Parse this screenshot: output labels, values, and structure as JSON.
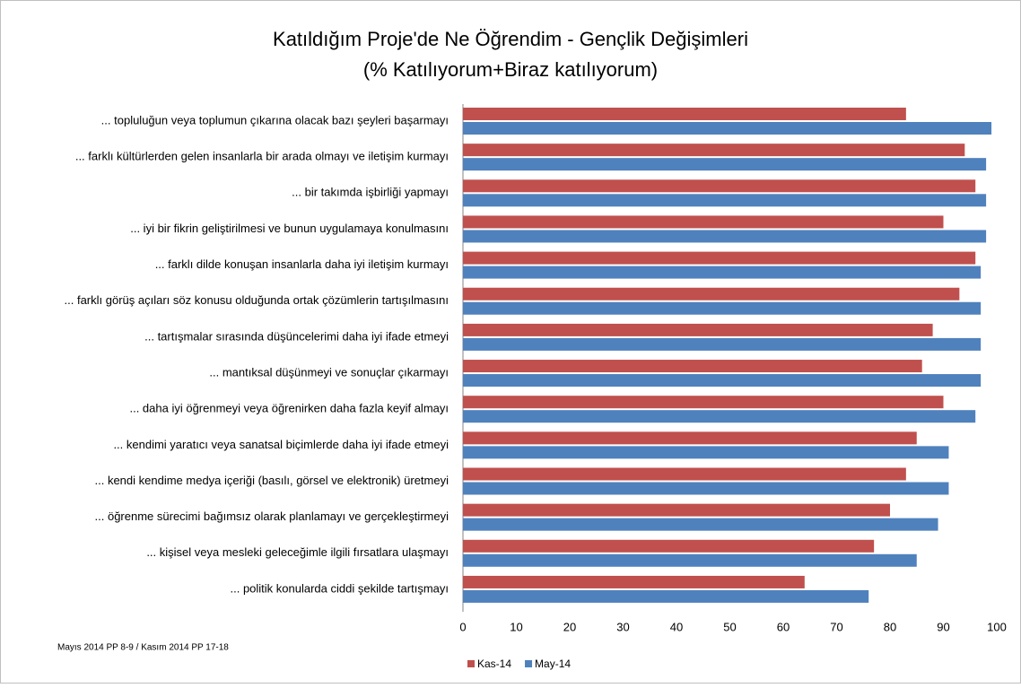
{
  "chart_data": {
    "type": "hbar",
    "title": "Katıldığım Proje'de Ne Öğrendim - Gençlik Değişimleri",
    "subtitle": "(% Katılıyorum+Biraz katılıyorum)",
    "note": "Mayıs 2014  PP 8-9 / Kasım 2014 PP 17-18",
    "categories": [
      "... topluluğun veya toplumun çıkarına olacak bazı şeyleri başarmayı",
      "... farklı kültürlerden gelen insanlarla bir arada olmayı ve iletişim kurmayı",
      "... bir takımda işbirliği yapmayı",
      "... iyi bir fikrin geliştirilmesi ve bunun uygulamaya konulmasını",
      "... farklı dilde konuşan insanlarla daha iyi iletişim kurmayı",
      "... farklı görüş açıları söz konusu olduğunda ortak çözümlerin tartışılmasını",
      "... tartışmalar sırasında düşüncelerimi daha iyi ifade etmeyi",
      "... mantıksal düşünmeyi ve sonuçlar çıkarmayı",
      "... daha iyi öğrenmeyi veya öğrenirken daha fazla keyif almayı",
      "... kendimi yaratıcı veya sanatsal biçimlerde daha iyi ifade etmeyi",
      "... kendi kendime medya içeriği (basılı, görsel ve elektronik) üretmeyi",
      "... öğrenme sürecimi bağımsız olarak planlamayı ve gerçekleştirmeyi",
      "... kişisel veya mesleki geleceğimle ilgili fırsatlara ulaşmayı",
      "... politik konularda ciddi şekilde tartışmayı"
    ],
    "series": [
      {
        "name": "Kas-14",
        "color": "#c0504d",
        "values": [
          83,
          94,
          96,
          90,
          96,
          93,
          88,
          86,
          90,
          85,
          83,
          80,
          77,
          64
        ]
      },
      {
        "name": "May-14",
        "color": "#4f81bd",
        "values": [
          99,
          98,
          98,
          98,
          97,
          97,
          97,
          97,
          96,
          91,
          91,
          89,
          85,
          76
        ]
      }
    ],
    "xlim": [
      0,
      100
    ],
    "xticks": [
      0,
      10,
      20,
      30,
      40,
      50,
      60,
      70,
      80,
      90,
      100
    ],
    "legend": "bottom"
  }
}
